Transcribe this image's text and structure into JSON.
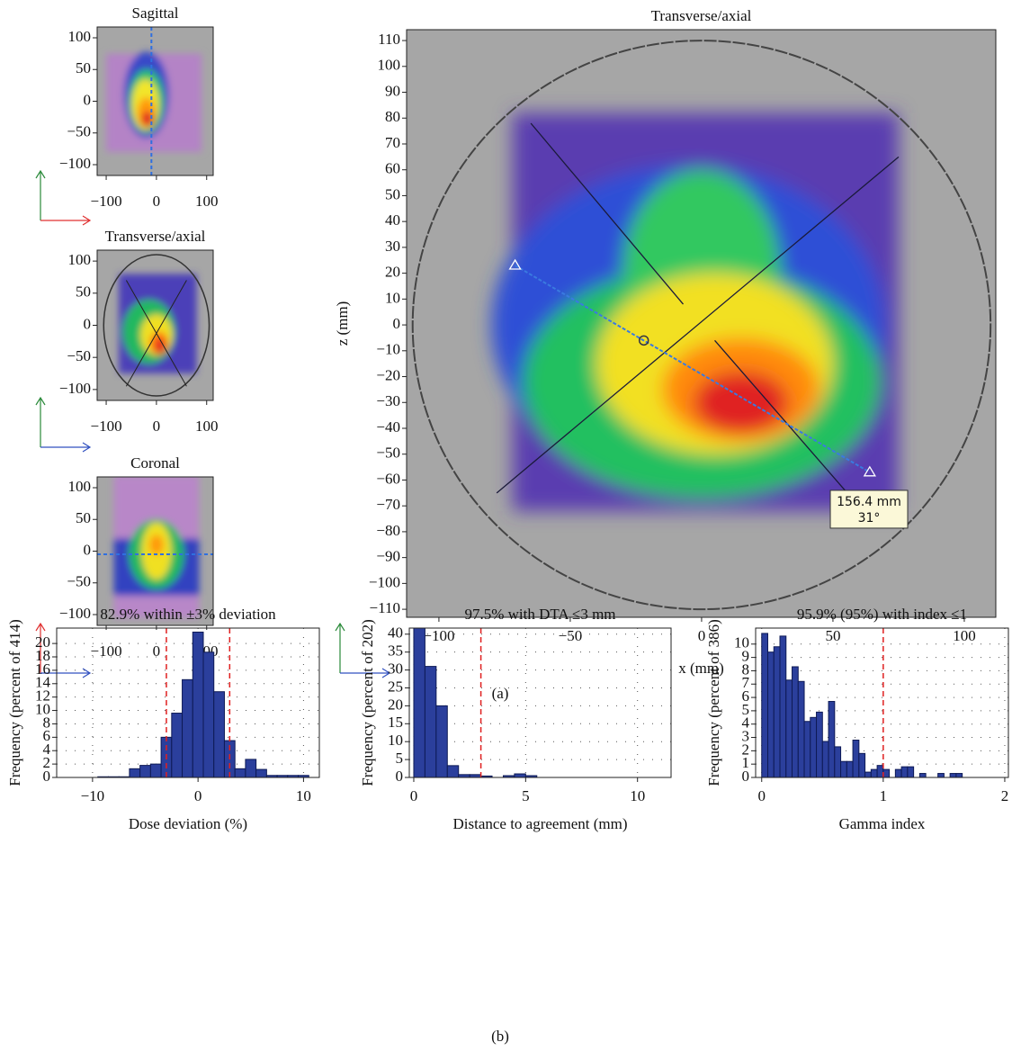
{
  "chart_data": [
    {
      "type": "heatmap",
      "title": "Sagittal",
      "xlim": [
        -118,
        113
      ],
      "ylim": [
        -117,
        117
      ],
      "xticks": [
        {
          "value": -100,
          "label": "−100"
        },
        0,
        100
      ],
      "yticks": [
        {
          "value": -100,
          "label": "−100"
        },
        {
          "value": -50,
          "label": "−50"
        },
        0,
        50,
        100
      ]
    },
    {
      "type": "heatmap",
      "title": "Transverse/axial",
      "xlim": [
        -118,
        113
      ],
      "ylim": [
        -117,
        117
      ],
      "xticks": [
        {
          "value": -100,
          "label": "−100"
        },
        0,
        100
      ],
      "yticks": [
        {
          "value": -100,
          "label": "−100"
        },
        {
          "value": -50,
          "label": "−50"
        },
        0,
        50,
        100
      ]
    },
    {
      "type": "heatmap",
      "title": "Coronal",
      "xlim": [
        -118,
        113
      ],
      "ylim": [
        -117,
        117
      ],
      "xticks": [
        {
          "value": -100,
          "label": "−100"
        },
        0,
        100
      ],
      "yticks": [
        {
          "value": -100,
          "label": "−100"
        },
        {
          "value": -50,
          "label": "−50"
        },
        0,
        50,
        100
      ]
    },
    {
      "type": "heatmap",
      "title": "Transverse/axial",
      "xlabel": "x (mm)",
      "ylabel": "z (mm)",
      "xlim": [
        -112.3,
        112
      ],
      "ylim": [
        -113.1,
        114.2
      ],
      "xticks": [
        {
          "value": -100,
          "label": "−100"
        },
        {
          "value": -50,
          "label": "−50"
        },
        0,
        50,
        100
      ],
      "yticks": [
        {
          "value": -110,
          "label": "−110"
        },
        {
          "value": -100,
          "label": "−100"
        },
        {
          "value": -90,
          "label": "−90"
        },
        {
          "value": -80,
          "label": "−80"
        },
        {
          "value": -70,
          "label": "−70"
        },
        {
          "value": -60,
          "label": "−60"
        },
        {
          "value": -50,
          "label": "−50"
        },
        {
          "value": -40,
          "label": "−40"
        },
        {
          "value": -30,
          "label": "−30"
        },
        {
          "value": -20,
          "label": "−20"
        },
        {
          "value": -10,
          "label": "−10"
        },
        0,
        10,
        20,
        30,
        40,
        50,
        60,
        70,
        80,
        90,
        100,
        110
      ],
      "annotations": [
        "156.4 mm",
        "31°"
      ]
    },
    {
      "type": "histogram",
      "title": "82.9% within ±3% deviation",
      "xlabel": "Dose deviation (%)",
      "ylabel": "Frequency (percent of 414)",
      "bins": [
        -9.5,
        -8.5,
        -7.5,
        -6.5,
        -5.5,
        -4.5,
        -3.5,
        -2.5,
        -1.5,
        -0.5,
        0.5,
        1.5,
        2.5,
        3.5,
        4.5,
        5.5,
        6.5,
        7.5,
        8.5,
        9.5,
        10.5
      ],
      "values": [
        0.1,
        0.1,
        0.1,
        1.3,
        1.8,
        2,
        6,
        9.6,
        14.6,
        21.7,
        18.7,
        12.8,
        5.5,
        1.3,
        2.7,
        1.2,
        0.3,
        0.3,
        0.3,
        0.3
      ],
      "color": "#2b3f9c",
      "thresholds": [
        -3,
        3
      ],
      "grid": true,
      "xlim": [
        -13.4,
        11.5
      ],
      "ylim": [
        0,
        22.3
      ],
      "xticks": [
        {
          "value": -10,
          "label": "−10"
        },
        0,
        10
      ],
      "yticks": [
        0,
        2,
        4,
        6,
        8,
        10,
        12,
        14,
        16,
        18,
        20
      ]
    },
    {
      "type": "histogram",
      "title": "97.5% with DTA ≤3 mm",
      "xlabel": "Distance to agreement (mm)",
      "ylabel": "Frequency (percent of 202)",
      "bins": [
        0,
        0.5,
        1,
        1.5,
        2,
        2.5,
        3,
        3.5,
        4,
        4.5,
        5,
        5.5
      ],
      "values": [
        42,
        31,
        20,
        3.3,
        0.8,
        0.8,
        0.4,
        0,
        0.5,
        1,
        0.5
      ],
      "color": "#2b3f9c",
      "thresholds": [
        3
      ],
      "grid": true,
      "xlim": [
        -0.2,
        11.5
      ],
      "ylim": [
        0,
        41.7
      ],
      "xticks": [
        0,
        5,
        10
      ],
      "yticks": [
        0,
        5,
        10,
        15,
        20,
        25,
        30,
        35,
        40
      ]
    },
    {
      "type": "histogram",
      "title": "95.9% (95%) with index    ≤1",
      "xlabel": "Gamma index",
      "ylabel": "Frequency (percent of 386)",
      "bins": [
        0,
        0.05,
        0.1,
        0.15,
        0.2,
        0.25,
        0.3,
        0.35,
        0.4,
        0.45,
        0.5,
        0.55,
        0.6,
        0.65,
        0.7,
        0.75,
        0.8,
        0.85,
        0.9,
        0.95,
        1,
        1.05,
        1.1,
        1.15,
        1.2,
        1.25,
        1.3,
        1.35,
        1.4,
        1.45,
        1.5,
        1.55,
        1.6,
        1.65
      ],
      "values": [
        10.8,
        9.4,
        9.8,
        10.6,
        7.3,
        8.3,
        7.2,
        4.2,
        4.5,
        4.9,
        2.7,
        5.7,
        2.3,
        1.2,
        1.2,
        2.8,
        1.8,
        0.4,
        0.6,
        0.9,
        0.6,
        0,
        0.6,
        0.8,
        0.8,
        0,
        0.3,
        0,
        0,
        0.3,
        0,
        0.3,
        0.3
      ],
      "color": "#2b3f9c",
      "thresholds": [
        1
      ],
      "grid": true,
      "xlim": [
        -0.05,
        2.03
      ],
      "ylim": [
        0,
        11.2
      ],
      "xticks": [
        0,
        1,
        2
      ],
      "yticks": [
        0,
        1,
        2,
        3,
        4,
        5,
        6,
        7,
        8,
        9,
        10
      ]
    }
  ],
  "panel_labels": [
    "(a)",
    "(b)"
  ]
}
